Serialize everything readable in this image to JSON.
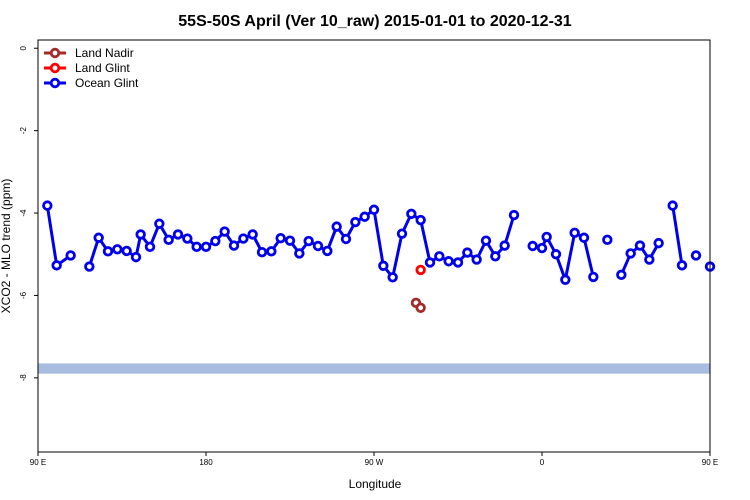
{
  "chart_data": {
    "type": "line",
    "title": "55S-50S April (Ver 10_raw)   2015-01-01 to 2020-12-31",
    "xlabel": "Longitude",
    "ylabel": "XCO2 - MLO trend (ppm)",
    "xlim": [
      90,
      450
    ],
    "ylim": [
      -9.8,
      0.2
    ],
    "x_ticks": [
      {
        "value": 90,
        "label": "90 E"
      },
      {
        "value": 180,
        "label": "180"
      },
      {
        "value": 270,
        "label": "90 W"
      },
      {
        "value": 360,
        "label": "0"
      },
      {
        "value": 450,
        "label": "90 E"
      },
      {
        "value": 540,
        "label": "180"
      }
    ],
    "y_ticks": [
      {
        "value": 0,
        "label": "0"
      },
      {
        "value": -2,
        "label": "-2"
      },
      {
        "value": -4,
        "label": "-4"
      },
      {
        "value": -6,
        "label": "-6"
      },
      {
        "value": -8,
        "label": "-8"
      }
    ],
    "legend_position": "top-left",
    "series": [
      {
        "name": "Land Nadir",
        "color": "#a52a2a",
        "segments": [
          [
            [
              292.5,
              -6.18
            ],
            [
              295,
              -6.3
            ]
          ]
        ]
      },
      {
        "name": "Land Glint",
        "color": "#ff0000",
        "segments": [
          [
            [
              295,
              -5.38
            ]
          ]
        ]
      },
      {
        "name": "Ocean Glint",
        "color": "#0000ee",
        "segments": [
          [
            [
              95,
              -3.82
            ],
            [
              100,
              -5.27
            ],
            [
              107.5,
              -5.03
            ]
          ],
          [
            [
              117.5,
              -5.3
            ],
            [
              122.5,
              -4.6
            ],
            [
              127.5,
              -4.93
            ],
            [
              132.5,
              -4.88
            ],
            [
              137.5,
              -4.92
            ],
            [
              142.5,
              -5.07
            ],
            [
              145,
              -4.52
            ],
            [
              150,
              -4.82
            ],
            [
              155,
              -4.26
            ],
            [
              160,
              -4.65
            ],
            [
              165,
              -4.52
            ],
            [
              170,
              -4.62
            ],
            [
              175,
              -4.82
            ],
            [
              180,
              -4.82
            ],
            [
              185,
              -4.68
            ],
            [
              190,
              -4.45
            ],
            [
              195,
              -4.79
            ],
            [
              200,
              -4.62
            ],
            [
              205,
              -4.52
            ],
            [
              210,
              -4.95
            ],
            [
              215,
              -4.93
            ],
            [
              220,
              -4.61
            ],
            [
              225,
              -4.67
            ],
            [
              230,
              -4.98
            ],
            [
              235,
              -4.68
            ],
            [
              240,
              -4.8
            ],
            [
              245,
              -4.92
            ],
            [
              250,
              -4.33
            ],
            [
              255,
              -4.63
            ],
            [
              260,
              -4.22
            ],
            [
              265,
              -4.09
            ],
            [
              270,
              -3.92
            ],
            [
              275,
              -5.28
            ],
            [
              280,
              -5.56
            ],
            [
              285,
              -4.5
            ],
            [
              290,
              -4.02
            ],
            [
              295,
              -4.17
            ],
            [
              300,
              -5.2
            ],
            [
              305,
              -5.05
            ],
            [
              310,
              -5.17
            ],
            [
              315,
              -5.2
            ],
            [
              320,
              -4.96
            ],
            [
              325,
              -5.13
            ],
            [
              330,
              -4.67
            ],
            [
              335,
              -5.05
            ],
            [
              340,
              -4.79
            ],
            [
              345,
              -4.05
            ]
          ],
          [
            [
              355,
              -4.8
            ]
          ],
          [
            [
              360,
              -4.85
            ],
            [
              362.5,
              -4.58
            ],
            [
              367.5,
              -5.0
            ],
            [
              372.5,
              -5.62
            ],
            [
              377.5,
              -4.48
            ],
            [
              382.5,
              -4.6
            ],
            [
              387.5,
              -5.55
            ]
          ],
          [
            [
              395,
              -4.65
            ]
          ],
          [
            [
              402.5,
              -5.5
            ],
            [
              407.5,
              -4.98
            ],
            [
              412.5,
              -4.79
            ],
            [
              417.5,
              -5.13
            ],
            [
              422.5,
              -4.73
            ]
          ],
          [
            [
              430,
              -3.82
            ],
            [
              435,
              -5.27
            ]
          ],
          [
            [
              442.5,
              -5.03
            ]
          ],
          [
            [
              450,
              -5.3
            ]
          ]
        ]
      }
    ],
    "bands": [
      {
        "y_min": -7.9,
        "y_max": -7.65,
        "color": "#a8bde0"
      }
    ]
  }
}
